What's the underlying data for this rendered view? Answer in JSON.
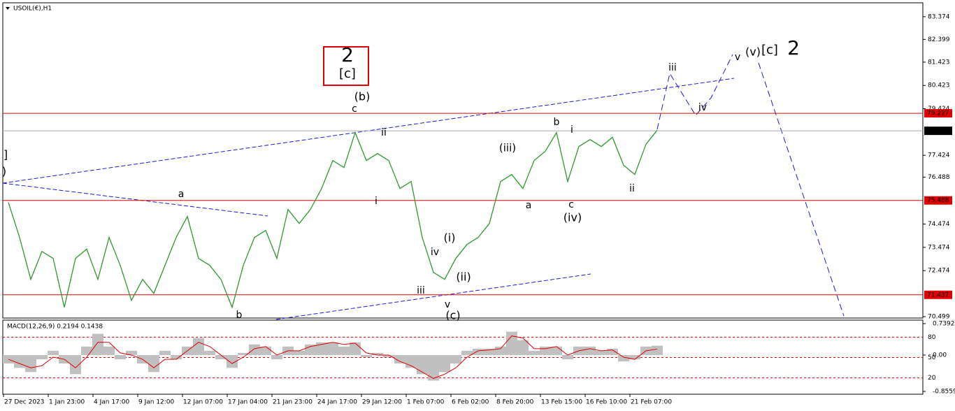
{
  "chart_data": [
    {
      "type": "line",
      "title": "USOIL(€),H1",
      "color": "#2f9a2f",
      "categories": [
        null,
        "27 Dec 2023",
        null,
        null,
        null,
        "1 Jan 23:00",
        null,
        null,
        null,
        "4 Jan 17:00",
        null,
        null,
        null,
        "9 Jan 12:00",
        null,
        null,
        null,
        "12 Jan 07:00",
        null,
        null,
        null,
        "17 Jan 04:00",
        null,
        null,
        null,
        "21 Jan 23:00",
        null,
        null,
        null,
        "24 Jan 17:00",
        null,
        null,
        null,
        "29 Jan 12:00",
        null,
        null,
        null,
        "1 Feb 07:00",
        null,
        null,
        null,
        "6 Feb 02:00",
        null,
        null,
        null,
        "8 Feb 20:00",
        null,
        null,
        null,
        "13 Feb 15:00",
        null,
        null,
        null,
        "16 Feb 10:00",
        null,
        null,
        null,
        "21 Feb 07:00",
        null
      ],
      "values": [
        75.4,
        73.9,
        72.1,
        73.3,
        73.0,
        70.9,
        73.0,
        73.4,
        72.1,
        73.9,
        72.7,
        71.2,
        72.1,
        71.5,
        72.7,
        73.9,
        74.8,
        73.0,
        72.7,
        72.1,
        70.9,
        72.7,
        73.9,
        74.2,
        73.0,
        75.1,
        74.5,
        75.1,
        76.0,
        77.2,
        76.9,
        78.4,
        77.2,
        77.5,
        77.2,
        76.0,
        76.3,
        73.9,
        72.4,
        72.1,
        73.0,
        73.6,
        73.9,
        74.5,
        76.3,
        76.6,
        76.0,
        77.2,
        77.6,
        78.4,
        76.3,
        77.8,
        78.1,
        77.8,
        78.2,
        77.0,
        76.6,
        77.9,
        78.5
      ],
      "ylim": [
        70.44,
        83.97
      ],
      "yticks": [
        83.374,
        82.399,
        81.423,
        80.423,
        79.424,
        77.424,
        76.488,
        74.474,
        73.474,
        72.474,
        70.499
      ],
      "levels": [
        {
          "value": 79.227,
          "color": "#e00000"
        },
        {
          "value": 75.488,
          "color": "#e00000"
        },
        {
          "value": 71.437,
          "color": "#e00000"
        }
      ],
      "last_price": 78.476,
      "annotations": [
        {
          "text": "2",
          "color": "#1a1adc"
        },
        {
          "text": "[c]",
          "color": "#2a9a2a"
        },
        {
          "text": "(b)",
          "color": "#1a1adc"
        },
        {
          "text": "c",
          "color": "#e020e0"
        },
        {
          "text": "ii",
          "color": "#e020e0"
        },
        {
          "text": "i",
          "color": "#e020e0"
        },
        {
          "text": "a",
          "color": "#e020e0"
        },
        {
          "text": "b",
          "color": "#e020e0"
        },
        {
          "text": "]",
          "color": "#2a9a2a"
        },
        {
          "text": ")",
          "color": "#1a1adc"
        },
        {
          "text": "(iii)",
          "color": "#1a1adc"
        },
        {
          "text": "b",
          "color": "#e020e0"
        },
        {
          "text": "i",
          "color": "#e020e0"
        },
        {
          "text": "a",
          "color": "#e020e0"
        },
        {
          "text": "c",
          "color": "#e020e0"
        },
        {
          "text": "(iv)",
          "color": "#1a1adc"
        },
        {
          "text": "ii",
          "color": "#e020e0"
        },
        {
          "text": "iii",
          "color": "#c070f0"
        },
        {
          "text": "iv",
          "color": "#c070f0"
        },
        {
          "text": "v",
          "color": "#c070f0"
        },
        {
          "text": "(v)",
          "color": "#1a1adc"
        },
        {
          "text": "[c]",
          "color": "#2a9a2a"
        },
        {
          "text": "2",
          "color": "#1a1adc"
        },
        {
          "text": "(i)",
          "color": "#1a1adc"
        },
        {
          "text": "(ii)",
          "color": "#1a1adc"
        },
        {
          "text": "iv",
          "color": "#e020e0"
        },
        {
          "text": "iii",
          "color": "#e020e0"
        },
        {
          "text": "v",
          "color": "#e020e0"
        },
        {
          "text": "(c)",
          "color": "#1a1adc"
        }
      ]
    },
    {
      "type": "macd",
      "title": "MACD(12,26,9) 0.2194 0.1438",
      "histogram": {
        "color": "#c0c0c0",
        "values": [
          -0.2,
          -0.3,
          -0.4,
          -0.1,
          0.1,
          -0.2,
          -0.45,
          0.2,
          0.5,
          0.2,
          -0.1,
          0.1,
          -0.2,
          -0.4,
          0.1,
          -0.1,
          0.2,
          0.4,
          0.1,
          -0.1,
          -0.3,
          0.05,
          0.25,
          0.2,
          -0.1,
          0.2,
          0.1,
          0.25,
          0.3,
          0.3,
          0.2,
          0.3,
          -0.05,
          0.05,
          -0.05,
          -0.2,
          -0.3,
          -0.45,
          -0.6,
          -0.4,
          -0.2,
          0.1,
          0.15,
          0.15,
          0.2,
          0.55,
          0.35,
          0.1,
          0.2,
          0.2,
          -0.1,
          0.2,
          0.2,
          0.1,
          0.15,
          -0.15,
          -0.1,
          0.2,
          0.22
        ]
      },
      "signal": {
        "color": "#e00000",
        "values": [
          -0.1,
          -0.2,
          -0.3,
          -0.25,
          -0.05,
          -0.1,
          -0.3,
          -0.05,
          0.3,
          0.3,
          0.05,
          0.0,
          -0.1,
          -0.3,
          -0.1,
          -0.1,
          0.1,
          0.3,
          0.2,
          0.0,
          -0.2,
          -0.05,
          0.15,
          0.2,
          0.0,
          0.1,
          0.1,
          0.2,
          0.25,
          0.3,
          0.25,
          0.28,
          0.05,
          0.0,
          0.0,
          -0.15,
          -0.25,
          -0.4,
          -0.55,
          -0.45,
          -0.3,
          -0.05,
          0.1,
          0.12,
          0.15,
          0.45,
          0.4,
          0.15,
          0.15,
          0.2,
          0.0,
          0.1,
          0.15,
          0.1,
          0.12,
          -0.05,
          -0.1,
          0.1,
          0.14
        ]
      },
      "ylim": [
        -0.8559,
        0.7392
      ],
      "yticks": [
        0.7392,
        {
          "value": 0,
          "label": "0.00"
        },
        -0.8559
      ],
      "y2lim": [
        0,
        100
      ],
      "y2ticks": [
        80,
        50,
        20
      ],
      "level_color": "#e00000"
    }
  ]
}
